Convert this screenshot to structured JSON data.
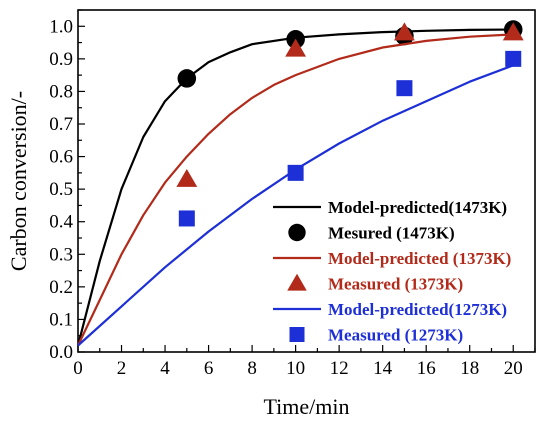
{
  "chart_data": {
    "type": "line",
    "xlabel": "Time/min",
    "ylabel": "Carbon conversion/-",
    "xlim": [
      0,
      21
    ],
    "ylim": [
      0,
      1.05
    ],
    "x_ticks": [
      "0",
      "2",
      "4",
      "6",
      "8",
      "10",
      "12",
      "14",
      "16",
      "18",
      "20"
    ],
    "y_ticks": [
      "0.0",
      "0.1",
      "0.2",
      "0.3",
      "0.4",
      "0.5",
      "0.6",
      "0.7",
      "0.8",
      "0.9",
      "1.0"
    ],
    "grid": false,
    "legend_position": "bottom-right",
    "series": [
      {
        "name": "Model-predicted(1473K)",
        "kind": "line",
        "color": "#000000",
        "x": [
          0,
          1,
          2,
          3,
          4,
          5,
          6,
          7,
          8,
          10,
          12,
          14,
          16,
          18,
          20
        ],
        "y": [
          0.02,
          0.28,
          0.5,
          0.66,
          0.77,
          0.84,
          0.89,
          0.92,
          0.945,
          0.965,
          0.975,
          0.982,
          0.986,
          0.989,
          0.99
        ]
      },
      {
        "name": "Mesured (1473K)",
        "kind": "scatter",
        "marker": "circle",
        "color": "#000000",
        "x": [
          5,
          10,
          15,
          20
        ],
        "y": [
          0.84,
          0.96,
          0.97,
          0.99
        ]
      },
      {
        "name": "Model-predicted (1373K)",
        "kind": "line",
        "color": "#b22a1a",
        "x": [
          0,
          1,
          2,
          3,
          4,
          5,
          6,
          7,
          8,
          9,
          10,
          12,
          14,
          16,
          18,
          20
        ],
        "y": [
          0.02,
          0.16,
          0.3,
          0.42,
          0.52,
          0.6,
          0.67,
          0.73,
          0.78,
          0.82,
          0.85,
          0.9,
          0.935,
          0.955,
          0.968,
          0.975
        ]
      },
      {
        "name": "Measured (1373K)",
        "kind": "scatter",
        "marker": "triangle",
        "color": "#b22a1a",
        "x": [
          5,
          10,
          15,
          20
        ],
        "y": [
          0.53,
          0.93,
          0.98,
          0.98
        ]
      },
      {
        "name": "Model-predicted(1273K)",
        "kind": "line",
        "color": "#1d2fd6",
        "x": [
          0,
          2,
          4,
          6,
          8,
          10,
          12,
          14,
          16,
          18,
          20
        ],
        "y": [
          0.02,
          0.14,
          0.26,
          0.37,
          0.47,
          0.56,
          0.64,
          0.71,
          0.77,
          0.83,
          0.88
        ]
      },
      {
        "name": "Measured (1273K)",
        "kind": "scatter",
        "marker": "square",
        "color": "#1d2fd6",
        "x": [
          5,
          10,
          15,
          20
        ],
        "y": [
          0.41,
          0.55,
          0.81,
          0.9
        ]
      }
    ]
  }
}
